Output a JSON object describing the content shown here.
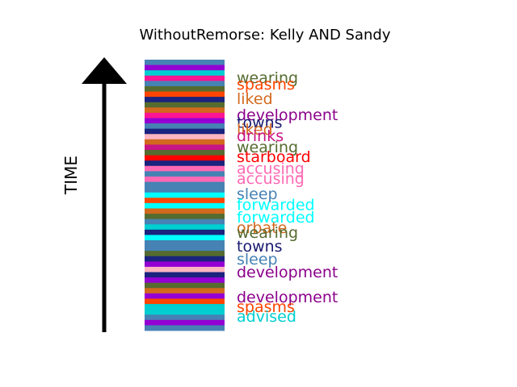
{
  "chart_data": {
    "type": "bar",
    "title": "WithoutRemorse: Kelly AND Sandy",
    "ylabel": "TIME",
    "stripe_colors": [
      "#4682b4",
      "#9400d3",
      "#00ced1",
      "#ff1493",
      "#4682b4",
      "#556b2f",
      "#ff4500",
      "#1a237e",
      "#556b2f",
      "#d2691e",
      "#ff1493",
      "#9400d3",
      "#4682b4",
      "#1a237e",
      "#ffb6c1",
      "#d2691e",
      "#c71585",
      "#556b2f",
      "#ff0000",
      "#1a237e",
      "#ff69b4",
      "#4682b4",
      "#ff69b4",
      "#4682b4",
      "#4682b4",
      "#00ffff",
      "#ff4500",
      "#00ffff",
      "#d2691e",
      "#556b2f",
      "#4682b4",
      "#00ced1",
      "#1a237e",
      "#00ffff",
      "#4682b4",
      "#4682b4",
      "#556b2f",
      "#1a237e",
      "#9400d3",
      "#ffb6c1",
      "#1a237e",
      "#9400d3",
      "#556b2f",
      "#d2691e",
      "#9400d3",
      "#ff4500",
      "#00ced1",
      "#00ced1",
      "#4682b4",
      "#9400d3",
      "#4682b4"
    ],
    "words": [
      {
        "text": "wearing",
        "color": "#556b2f",
        "pos": 0.935
      },
      {
        "text": "spasms",
        "color": "#ff4500",
        "pos": 0.91
      },
      {
        "text": "liked",
        "color": "#d2691e",
        "pos": 0.857
      },
      {
        "text": "development",
        "color": "#8b008b",
        "pos": 0.797
      },
      {
        "text": "towns",
        "color": "#191970",
        "pos": 0.77
      },
      {
        "text": "liked",
        "color": "#d2691e",
        "pos": 0.744
      },
      {
        "text": "drinks",
        "color": "#c71585",
        "pos": 0.72
      },
      {
        "text": "wearing",
        "color": "#556b2f",
        "pos": 0.678
      },
      {
        "text": "starboard",
        "color": "#ff0000",
        "pos": 0.643
      },
      {
        "text": "accusing",
        "color": "#ff69b4",
        "pos": 0.599
      },
      {
        "text": "accusing",
        "color": "#ff69b4",
        "pos": 0.563
      },
      {
        "text": "sleep",
        "color": "#4682b4",
        "pos": 0.506
      },
      {
        "text": "forwarded",
        "color": "#00ffff",
        "pos": 0.466
      },
      {
        "text": "forwarded",
        "color": "#00ffff",
        "pos": 0.419
      },
      {
        "text": "orbate",
        "color": "#d2691e",
        "pos": 0.381
      },
      {
        "text": "wearing",
        "color": "#556b2f",
        "pos": 0.363
      },
      {
        "text": "towns",
        "color": "#191970",
        "pos": 0.313
      },
      {
        "text": "sleep",
        "color": "#4682b4",
        "pos": 0.265
      },
      {
        "text": "development",
        "color": "#8b008b",
        "pos": 0.217
      },
      {
        "text": "development",
        "color": "#8b008b",
        "pos": 0.125
      },
      {
        "text": "spasms",
        "color": "#ff4500",
        "pos": 0.09
      },
      {
        "text": "advised",
        "color": "#00ced1",
        "pos": 0.054
      }
    ]
  }
}
